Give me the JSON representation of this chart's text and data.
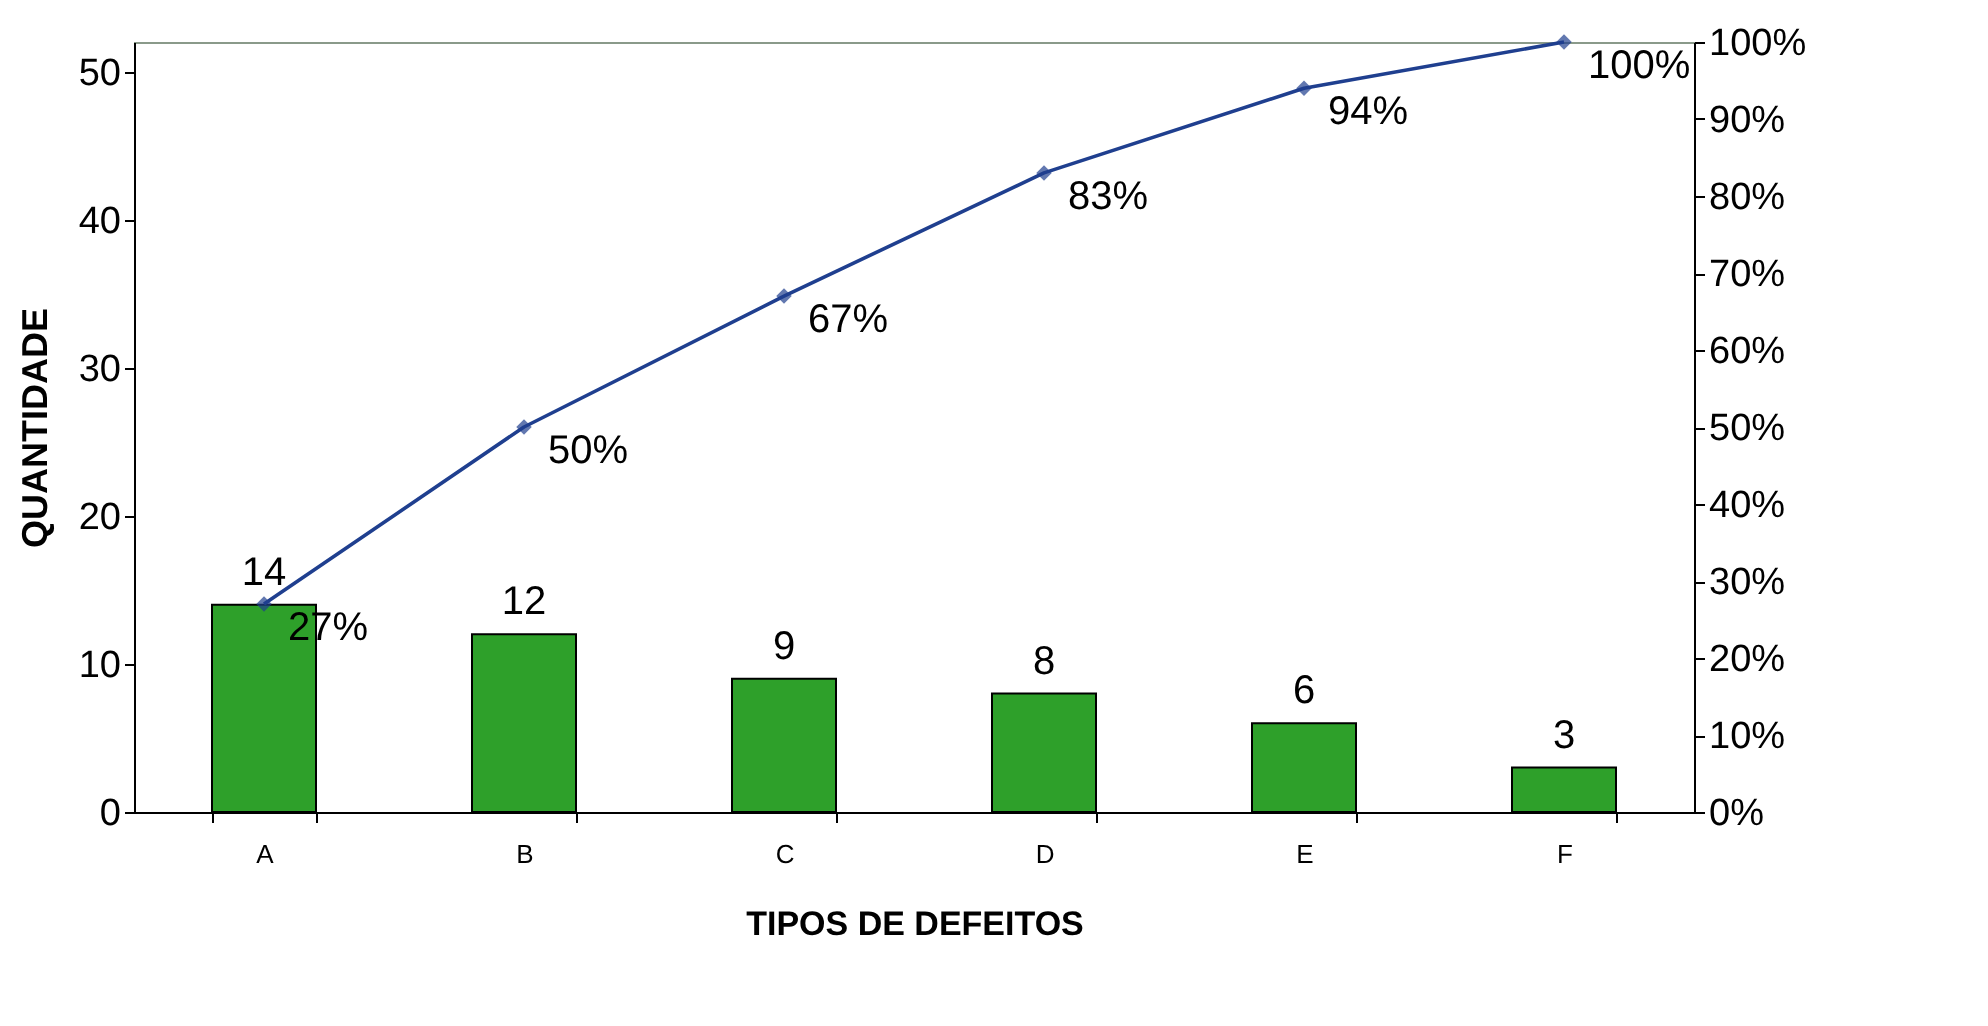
{
  "chart_data": {
    "type": "bar",
    "xlabel": "TIPOS DE DEFEITOS",
    "ylabel": "QUANTIDADE",
    "categories": [
      "A",
      "B",
      "C",
      "D",
      "E",
      "F"
    ],
    "series": [
      {
        "color": "#2ea02a",
        "values": [
          14,
          12,
          9,
          8,
          6,
          3
        ],
        "value_labels": [
          "14",
          "12",
          "9",
          "8",
          "6",
          "3"
        ]
      },
      {
        "type": "line",
        "axis": "y2",
        "color": "#1f3f8f",
        "marker": "diamond",
        "values": [
          27,
          50,
          67,
          83,
          94,
          100
        ],
        "value_labels": [
          "27%",
          "50%",
          "67%",
          "83%",
          "94%",
          "100%"
        ]
      }
    ],
    "ylim": [
      0,
      52
    ],
    "yticks": [
      0,
      10,
      20,
      30,
      40,
      50
    ],
    "y2lim": [
      0,
      100
    ],
    "y2ticks": [
      {
        "value": 0,
        "label": "0%"
      },
      {
        "value": 10,
        "label": "10%"
      },
      {
        "value": 20,
        "label": "20%"
      },
      {
        "value": 30,
        "label": "30%"
      },
      {
        "value": 40,
        "label": "40%"
      },
      {
        "value": 50,
        "label": "50%"
      },
      {
        "value": 60,
        "label": "60%"
      },
      {
        "value": 70,
        "label": "70%"
      },
      {
        "value": 80,
        "label": "80%"
      },
      {
        "value": 90,
        "label": "90%"
      },
      {
        "value": 100,
        "label": "100%"
      }
    ],
    "grid": false
  }
}
